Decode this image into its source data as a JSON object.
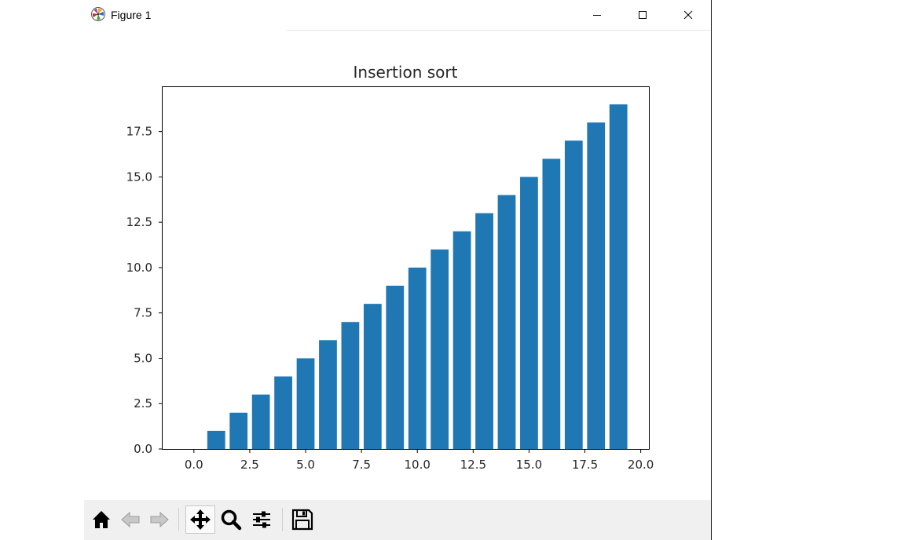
{
  "window": {
    "title": "Figure 1",
    "controls": [
      "minimize",
      "maximize",
      "close"
    ]
  },
  "toolbar": {
    "buttons": [
      {
        "name": "home",
        "icon": "home-icon"
      },
      {
        "name": "back",
        "icon": "arrow-left-icon"
      },
      {
        "name": "forward",
        "icon": "arrow-right-icon"
      },
      {
        "name": "pan",
        "icon": "move-icon"
      },
      {
        "name": "zoom",
        "icon": "magnifier-icon"
      },
      {
        "name": "configure-subplots",
        "icon": "sliders-icon"
      },
      {
        "name": "save",
        "icon": "floppy-disk-icon"
      }
    ]
  },
  "chart_data": {
    "type": "bar",
    "title": "Insertion sort",
    "xlabel": "",
    "ylabel": "",
    "x": [
      0,
      1,
      2,
      3,
      4,
      5,
      6,
      7,
      8,
      9,
      10,
      11,
      12,
      13,
      14,
      15,
      16,
      17,
      18,
      19
    ],
    "values": [
      0,
      1,
      2,
      3,
      4,
      5,
      6,
      7,
      8,
      9,
      10,
      11,
      12,
      13,
      14,
      15,
      16,
      17,
      18,
      19
    ],
    "xlim": [
      -1.4,
      20.4
    ],
    "ylim": [
      0,
      19.95
    ],
    "xticks": [
      0,
      2.5,
      5,
      7.5,
      10,
      12.5,
      15,
      17.5,
      20
    ],
    "xtick_labels": [
      "0.0",
      "2.5",
      "5.0",
      "7.5",
      "10.0",
      "12.5",
      "15.0",
      "17.5",
      "20.0"
    ],
    "yticks": [
      0,
      2.5,
      5,
      7.5,
      10,
      12.5,
      15,
      17.5
    ],
    "ytick_labels": [
      "0.0",
      "2.5",
      "5.0",
      "7.5",
      "10.0",
      "12.5",
      "15.0",
      "17.5"
    ],
    "bar_width": 0.8,
    "bar_color": "#1f77b4",
    "grid": false
  }
}
